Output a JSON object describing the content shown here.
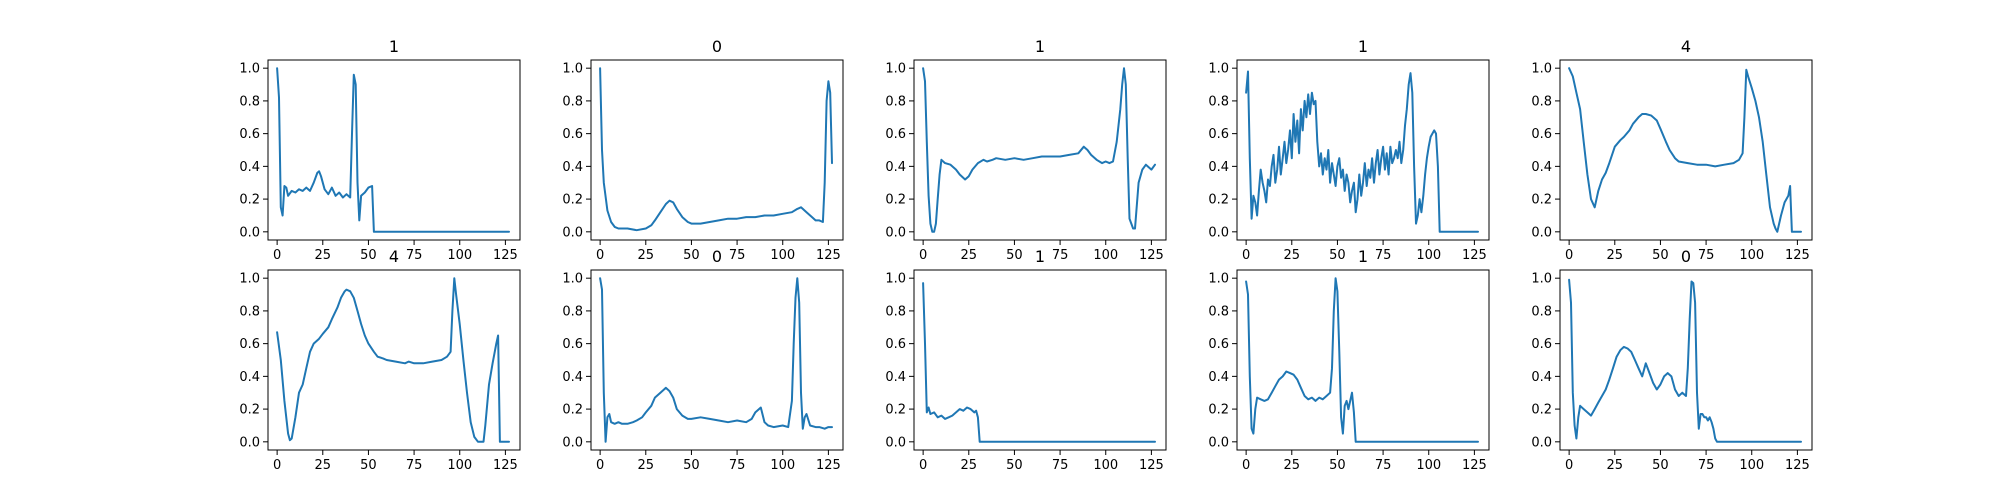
{
  "figure": {
    "line_color": "#1f77b4",
    "background": "#ffffff"
  },
  "chart_data": [
    {
      "type": "line",
      "title": "1",
      "xlim": [
        -5,
        133
      ],
      "ylim": [
        -0.05,
        1.05
      ],
      "xticks": [
        0,
        25,
        50,
        75,
        100,
        125
      ],
      "yticks": [
        0.0,
        0.2,
        0.4,
        0.6,
        0.8,
        1.0
      ],
      "x": [
        0,
        1,
        2,
        3,
        4,
        5,
        6,
        8,
        10,
        12,
        14,
        16,
        18,
        20,
        22,
        23,
        24,
        26,
        28,
        30,
        32,
        34,
        36,
        38,
        40,
        41,
        42,
        43,
        44,
        45,
        46,
        48,
        50,
        52,
        53,
        125,
        127
      ],
      "y": [
        1.0,
        0.82,
        0.15,
        0.1,
        0.28,
        0.27,
        0.22,
        0.25,
        0.24,
        0.26,
        0.25,
        0.27,
        0.25,
        0.3,
        0.36,
        0.37,
        0.34,
        0.26,
        0.23,
        0.27,
        0.22,
        0.24,
        0.21,
        0.23,
        0.21,
        0.6,
        0.96,
        0.9,
        0.3,
        0.07,
        0.22,
        0.24,
        0.27,
        0.28,
        0.0,
        0.0,
        0.0
      ]
    },
    {
      "type": "line",
      "title": "0",
      "xlim": [
        -5,
        133
      ],
      "ylim": [
        -0.05,
        1.05
      ],
      "xticks": [
        0,
        25,
        50,
        75,
        100,
        125
      ],
      "yticks": [
        0.0,
        0.2,
        0.4,
        0.6,
        0.8,
        1.0
      ],
      "x": [
        0,
        1,
        2,
        4,
        6,
        8,
        10,
        12,
        15,
        20,
        25,
        28,
        30,
        33,
        36,
        38,
        40,
        42,
        45,
        48,
        50,
        55,
        60,
        65,
        70,
        75,
        80,
        85,
        90,
        95,
        100,
        105,
        108,
        110,
        113,
        116,
        118,
        120,
        122,
        123,
        124,
        125,
        126,
        127
      ],
      "y": [
        1.0,
        0.5,
        0.3,
        0.13,
        0.06,
        0.03,
        0.02,
        0.02,
        0.02,
        0.01,
        0.02,
        0.04,
        0.07,
        0.12,
        0.17,
        0.19,
        0.18,
        0.14,
        0.09,
        0.06,
        0.05,
        0.05,
        0.06,
        0.07,
        0.08,
        0.08,
        0.09,
        0.09,
        0.1,
        0.1,
        0.11,
        0.12,
        0.14,
        0.15,
        0.12,
        0.09,
        0.07,
        0.07,
        0.06,
        0.3,
        0.8,
        0.92,
        0.85,
        0.42
      ]
    },
    {
      "type": "line",
      "title": "1",
      "xlim": [
        -5,
        133
      ],
      "ylim": [
        -0.05,
        1.05
      ],
      "xticks": [
        0,
        25,
        50,
        75,
        100,
        125
      ],
      "yticks": [
        0.0,
        0.2,
        0.4,
        0.6,
        0.8,
        1.0
      ],
      "x": [
        0,
        1,
        2,
        3,
        4,
        5,
        6,
        7,
        8,
        9,
        10,
        12,
        15,
        18,
        20,
        23,
        25,
        27,
        30,
        33,
        35,
        38,
        40,
        45,
        50,
        55,
        60,
        65,
        70,
        75,
        80,
        85,
        88,
        90,
        92,
        95,
        98,
        100,
        102,
        104,
        106,
        107,
        108,
        109,
        110,
        111,
        112,
        113,
        114,
        115,
        116,
        118,
        120,
        122,
        125,
        127
      ],
      "y": [
        1.0,
        0.92,
        0.55,
        0.22,
        0.05,
        0.0,
        0.0,
        0.05,
        0.2,
        0.35,
        0.44,
        0.42,
        0.41,
        0.38,
        0.35,
        0.32,
        0.34,
        0.38,
        0.42,
        0.44,
        0.43,
        0.44,
        0.45,
        0.44,
        0.45,
        0.44,
        0.45,
        0.46,
        0.46,
        0.46,
        0.47,
        0.48,
        0.52,
        0.5,
        0.47,
        0.44,
        0.42,
        0.43,
        0.42,
        0.43,
        0.55,
        0.65,
        0.75,
        0.9,
        1.0,
        0.9,
        0.45,
        0.08,
        0.05,
        0.02,
        0.02,
        0.3,
        0.38,
        0.41,
        0.38,
        0.41
      ]
    },
    {
      "type": "line",
      "title": "1",
      "xlim": [
        -5,
        133
      ],
      "ylim": [
        -0.05,
        1.05
      ],
      "xticks": [
        0,
        25,
        50,
        75,
        100,
        125
      ],
      "yticks": [
        0.0,
        0.2,
        0.4,
        0.6,
        0.8,
        1.0
      ],
      "x": [
        0,
        1,
        2,
        3,
        4,
        5,
        6,
        7,
        8,
        9,
        10,
        11,
        12,
        13,
        14,
        15,
        16,
        17,
        18,
        19,
        20,
        21,
        22,
        23,
        24,
        25,
        26,
        27,
        28,
        29,
        30,
        31,
        32,
        33,
        34,
        35,
        36,
        37,
        38,
        39,
        40,
        41,
        42,
        43,
        44,
        45,
        46,
        47,
        48,
        49,
        50,
        51,
        52,
        53,
        54,
        55,
        56,
        57,
        58,
        59,
        60,
        61,
        62,
        63,
        64,
        65,
        66,
        67,
        68,
        69,
        70,
        71,
        72,
        73,
        74,
        75,
        76,
        77,
        78,
        79,
        80,
        81,
        82,
        83,
        84,
        85,
        86,
        87,
        88,
        89,
        90,
        91,
        92,
        93,
        94,
        95,
        96,
        97,
        98,
        99,
        100,
        101,
        102,
        103,
        104,
        105,
        106,
        125,
        127
      ],
      "y": [
        0.85,
        0.98,
        0.45,
        0.08,
        0.22,
        0.18,
        0.1,
        0.25,
        0.38,
        0.3,
        0.25,
        0.18,
        0.32,
        0.28,
        0.4,
        0.47,
        0.3,
        0.38,
        0.52,
        0.35,
        0.45,
        0.55,
        0.42,
        0.5,
        0.62,
        0.45,
        0.72,
        0.55,
        0.68,
        0.48,
        0.75,
        0.62,
        0.8,
        0.7,
        0.84,
        0.72,
        0.85,
        0.78,
        0.8,
        0.55,
        0.4,
        0.48,
        0.35,
        0.45,
        0.38,
        0.5,
        0.3,
        0.42,
        0.35,
        0.28,
        0.4,
        0.45,
        0.33,
        0.38,
        0.25,
        0.35,
        0.3,
        0.18,
        0.25,
        0.3,
        0.12,
        0.2,
        0.35,
        0.22,
        0.3,
        0.42,
        0.28,
        0.38,
        0.33,
        0.45,
        0.3,
        0.42,
        0.5,
        0.35,
        0.45,
        0.52,
        0.38,
        0.48,
        0.35,
        0.52,
        0.42,
        0.45,
        0.5,
        0.45,
        0.55,
        0.42,
        0.5,
        0.65,
        0.75,
        0.9,
        0.97,
        0.85,
        0.4,
        0.05,
        0.1,
        0.2,
        0.12,
        0.22,
        0.35,
        0.45,
        0.52,
        0.58,
        0.6,
        0.62,
        0.6,
        0.4,
        0.0,
        0.0,
        0.0
      ]
    },
    {
      "type": "line",
      "title": "4",
      "xlim": [
        -5,
        133
      ],
      "ylim": [
        -0.05,
        1.05
      ],
      "xticks": [
        0,
        25,
        50,
        75,
        100,
        125
      ],
      "yticks": [
        0.0,
        0.2,
        0.4,
        0.6,
        0.8,
        1.0
      ],
      "x": [
        0,
        2,
        4,
        6,
        8,
        10,
        12,
        14,
        16,
        18,
        20,
        22,
        25,
        28,
        30,
        33,
        35,
        38,
        40,
        42,
        45,
        48,
        50,
        53,
        55,
        58,
        60,
        65,
        70,
        75,
        80,
        85,
        90,
        93,
        95,
        96,
        97,
        98,
        100,
        102,
        104,
        106,
        108,
        110,
        112,
        113,
        114,
        116,
        118,
        120,
        121,
        122,
        123,
        125,
        127
      ],
      "y": [
        1.0,
        0.95,
        0.85,
        0.75,
        0.55,
        0.35,
        0.2,
        0.15,
        0.25,
        0.32,
        0.36,
        0.42,
        0.52,
        0.56,
        0.58,
        0.62,
        0.66,
        0.7,
        0.72,
        0.72,
        0.71,
        0.68,
        0.63,
        0.55,
        0.5,
        0.45,
        0.43,
        0.42,
        0.41,
        0.41,
        0.4,
        0.41,
        0.42,
        0.44,
        0.48,
        0.7,
        0.99,
        0.95,
        0.88,
        0.8,
        0.7,
        0.55,
        0.35,
        0.15,
        0.05,
        0.02,
        0.0,
        0.1,
        0.18,
        0.22,
        0.28,
        0.0,
        0.0,
        0.0,
        0.0
      ]
    },
    {
      "type": "line",
      "title": "4",
      "xlim": [
        -5,
        133
      ],
      "ylim": [
        -0.05,
        1.05
      ],
      "xticks": [
        0,
        25,
        50,
        75,
        100,
        125
      ],
      "yticks": [
        0.0,
        0.2,
        0.4,
        0.6,
        0.8,
        1.0
      ],
      "x": [
        0,
        2,
        4,
        6,
        7,
        8,
        10,
        12,
        14,
        16,
        18,
        20,
        23,
        25,
        28,
        30,
        33,
        35,
        37,
        38,
        40,
        42,
        44,
        46,
        48,
        50,
        53,
        55,
        58,
        60,
        65,
        70,
        72,
        75,
        80,
        85,
        90,
        93,
        95,
        96,
        97,
        98,
        100,
        102,
        104,
        106,
        108,
        110,
        112,
        113,
        114,
        116,
        118,
        120,
        121,
        122,
        123,
        125,
        127
      ],
      "y": [
        0.67,
        0.5,
        0.25,
        0.05,
        0.01,
        0.02,
        0.15,
        0.3,
        0.35,
        0.45,
        0.55,
        0.6,
        0.63,
        0.66,
        0.7,
        0.75,
        0.82,
        0.88,
        0.92,
        0.93,
        0.92,
        0.88,
        0.8,
        0.72,
        0.65,
        0.6,
        0.55,
        0.52,
        0.51,
        0.5,
        0.49,
        0.48,
        0.49,
        0.48,
        0.48,
        0.49,
        0.5,
        0.52,
        0.55,
        0.8,
        1.0,
        0.9,
        0.72,
        0.5,
        0.3,
        0.12,
        0.03,
        0.0,
        0.0,
        0.0,
        0.1,
        0.35,
        0.48,
        0.6,
        0.65,
        0.0,
        0.0,
        0.0,
        0.0
      ]
    },
    {
      "type": "line",
      "title": "0",
      "xlim": [
        -5,
        133
      ],
      "ylim": [
        -0.05,
        1.05
      ],
      "xticks": [
        0,
        25,
        50,
        75,
        100,
        125
      ],
      "yticks": [
        0.0,
        0.2,
        0.4,
        0.6,
        0.8,
        1.0
      ],
      "x": [
        0,
        1,
        2,
        3,
        4,
        5,
        6,
        8,
        10,
        12,
        15,
        18,
        20,
        23,
        25,
        28,
        30,
        33,
        35,
        36,
        38,
        40,
        42,
        45,
        48,
        50,
        55,
        60,
        65,
        70,
        75,
        80,
        83,
        85,
        87,
        88,
        90,
        92,
        95,
        100,
        103,
        105,
        106,
        107,
        108,
        109,
        110,
        111,
        112,
        113,
        115,
        118,
        120,
        123,
        125,
        127
      ],
      "y": [
        1.0,
        0.93,
        0.3,
        0.0,
        0.15,
        0.17,
        0.12,
        0.11,
        0.12,
        0.11,
        0.11,
        0.12,
        0.13,
        0.15,
        0.18,
        0.22,
        0.27,
        0.3,
        0.32,
        0.33,
        0.31,
        0.27,
        0.2,
        0.16,
        0.14,
        0.14,
        0.15,
        0.14,
        0.13,
        0.12,
        0.13,
        0.12,
        0.14,
        0.18,
        0.2,
        0.21,
        0.12,
        0.1,
        0.09,
        0.1,
        0.09,
        0.25,
        0.6,
        0.88,
        1.0,
        0.85,
        0.3,
        0.08,
        0.15,
        0.17,
        0.1,
        0.09,
        0.09,
        0.08,
        0.09,
        0.09
      ]
    },
    {
      "type": "line",
      "title": "1",
      "xlim": [
        -5,
        133
      ],
      "ylim": [
        -0.05,
        1.05
      ],
      "xticks": [
        0,
        25,
        50,
        75,
        100,
        125
      ],
      "yticks": [
        0.0,
        0.2,
        0.4,
        0.6,
        0.8,
        1.0
      ],
      "x": [
        0,
        1,
        2,
        3,
        4,
        6,
        8,
        10,
        12,
        14,
        16,
        18,
        20,
        22,
        24,
        26,
        28,
        29,
        30,
        31,
        125,
        127
      ],
      "y": [
        0.97,
        0.6,
        0.18,
        0.21,
        0.17,
        0.18,
        0.15,
        0.16,
        0.14,
        0.15,
        0.16,
        0.18,
        0.2,
        0.19,
        0.21,
        0.2,
        0.18,
        0.19,
        0.15,
        0.0,
        0.0,
        0.0
      ]
    },
    {
      "type": "line",
      "title": "1",
      "xlim": [
        -5,
        133
      ],
      "ylim": [
        -0.05,
        1.05
      ],
      "xticks": [
        0,
        25,
        50,
        75,
        100,
        125
      ],
      "yticks": [
        0.0,
        0.2,
        0.4,
        0.6,
        0.8,
        1.0
      ],
      "x": [
        0,
        1,
        2,
        3,
        4,
        5,
        6,
        8,
        10,
        12,
        14,
        16,
        18,
        20,
        22,
        24,
        26,
        28,
        30,
        32,
        34,
        36,
        38,
        40,
        42,
        44,
        46,
        47,
        48,
        49,
        50,
        51,
        52,
        53,
        54,
        55,
        56,
        57,
        58,
        59,
        60,
        61,
        125,
        127
      ],
      "y": [
        0.98,
        0.9,
        0.4,
        0.08,
        0.05,
        0.2,
        0.27,
        0.26,
        0.25,
        0.26,
        0.3,
        0.34,
        0.38,
        0.4,
        0.43,
        0.42,
        0.41,
        0.38,
        0.33,
        0.28,
        0.26,
        0.27,
        0.25,
        0.27,
        0.26,
        0.28,
        0.3,
        0.45,
        0.8,
        1.0,
        0.92,
        0.55,
        0.15,
        0.05,
        0.22,
        0.25,
        0.2,
        0.25,
        0.3,
        0.18,
        0.0,
        0.0,
        0.0,
        0.0
      ]
    },
    {
      "type": "line",
      "title": "0",
      "xlim": [
        -5,
        133
      ],
      "ylim": [
        -0.05,
        1.05
      ],
      "xticks": [
        0,
        25,
        50,
        75,
        100,
        125
      ],
      "yticks": [
        0.0,
        0.2,
        0.4,
        0.6,
        0.8,
        1.0
      ],
      "x": [
        0,
        1,
        2,
        3,
        4,
        5,
        6,
        8,
        10,
        12,
        14,
        16,
        18,
        20,
        22,
        24,
        26,
        28,
        30,
        32,
        34,
        36,
        38,
        40,
        42,
        44,
        46,
        48,
        50,
        52,
        54,
        56,
        58,
        60,
        62,
        64,
        65,
        66,
        67,
        68,
        69,
        70,
        71,
        72,
        73,
        74,
        75,
        76,
        77,
        78,
        79,
        80,
        81,
        125,
        127
      ],
      "y": [
        0.99,
        0.85,
        0.3,
        0.1,
        0.02,
        0.15,
        0.22,
        0.2,
        0.18,
        0.16,
        0.2,
        0.24,
        0.28,
        0.32,
        0.38,
        0.45,
        0.52,
        0.56,
        0.58,
        0.57,
        0.55,
        0.5,
        0.45,
        0.4,
        0.48,
        0.42,
        0.36,
        0.32,
        0.35,
        0.4,
        0.42,
        0.4,
        0.32,
        0.28,
        0.3,
        0.28,
        0.45,
        0.75,
        0.98,
        0.97,
        0.85,
        0.3,
        0.08,
        0.17,
        0.17,
        0.15,
        0.15,
        0.13,
        0.15,
        0.12,
        0.08,
        0.02,
        0.0,
        0.0,
        0.0
      ]
    }
  ]
}
